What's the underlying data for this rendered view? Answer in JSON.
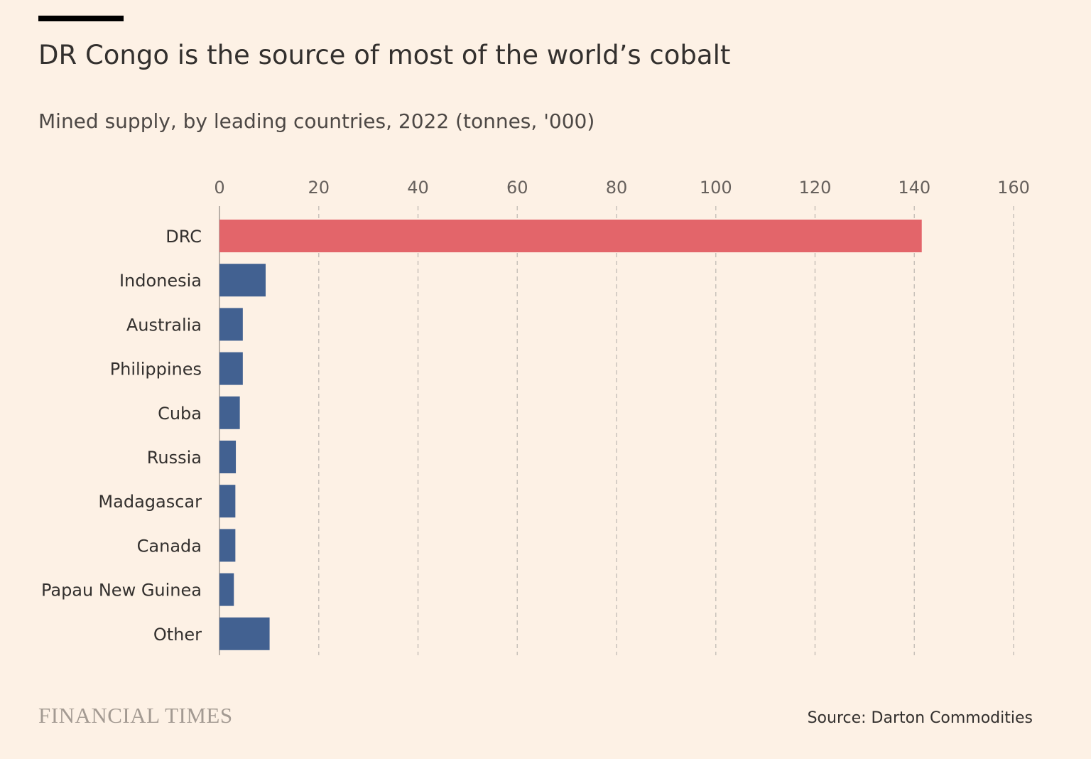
{
  "header": {
    "title": "DR Congo is the source of most of the world’s cobalt",
    "subtitle": "Mined supply, by leading countries, 2022 (tonnes, '000)"
  },
  "footer": {
    "brand": "FINANCIAL TIMES",
    "source": "Source: Darton Commodities"
  },
  "colors": {
    "background": "#fdf1e5",
    "highlight_bar": "#e3656a",
    "bar": "#426191",
    "gridline": "#c9c2bb",
    "text": "#33302e",
    "brand": "#a39a92"
  },
  "chart_data": {
    "type": "bar",
    "orientation": "horizontal",
    "title": "DR Congo is the source of most of the world’s cobalt",
    "subtitle": "Mined supply, by leading countries, 2022 (tonnes, '000)",
    "categories": [
      "DRC",
      "Indonesia",
      "Australia",
      "Philippines",
      "Cuba",
      "Russia",
      "Madagascar",
      "Canada",
      "Papau New Guinea",
      "Other"
    ],
    "values": [
      141.5,
      9.3,
      4.7,
      4.7,
      4.1,
      3.3,
      3.2,
      3.2,
      2.9,
      10.1
    ],
    "highlight": "DRC",
    "xlim": [
      0,
      160
    ],
    "xticks": [
      0,
      20,
      40,
      60,
      80,
      100,
      120,
      140,
      160
    ],
    "tick_position": "top",
    "grid": "vertical-dashed",
    "source": "Source: Darton Commodities"
  }
}
